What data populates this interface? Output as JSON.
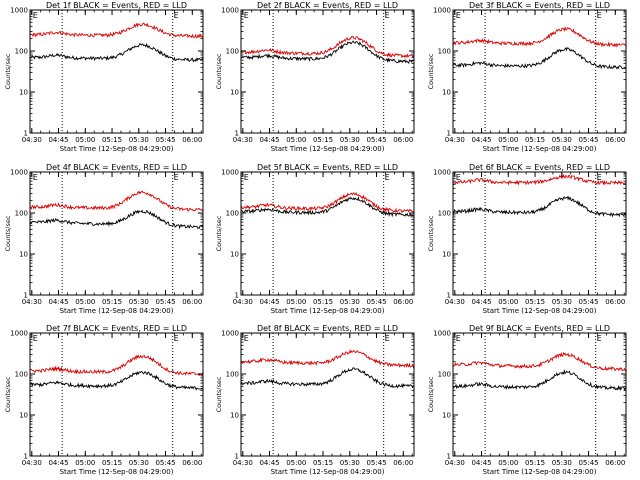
{
  "chart_data": [
    {
      "type": "line",
      "title": "Det 1f BLACK = Events, RED = LLD",
      "xlabel": "Start Time (12-Sep-08 04:29:00)",
      "ylabel": "Counts/sec",
      "x_ticks": [
        "04:30",
        "04:45",
        "05:00",
        "05:15",
        "05:30",
        "05:45",
        "06:00"
      ],
      "y_ticks": [
        "1",
        "10",
        "100",
        "1000"
      ],
      "xlim": [
        "04:29",
        "06:06"
      ],
      "ylim": [
        1,
        1000
      ],
      "y_scale": "log",
      "markers": [
        {
          "label": "E",
          "time": "04:30"
        },
        {
          "label": "E",
          "time": "05:49"
        }
      ],
      "vlines": [
        "04:47",
        "05:49"
      ],
      "series": [
        {
          "color": "#000000",
          "base": 70,
          "peak": 140,
          "end": 60
        },
        {
          "color": "#dd0000",
          "base": 250,
          "peak": 450,
          "end": 230
        }
      ]
    },
    {
      "type": "line",
      "title": "Det 2f BLACK = Events, RED = LLD",
      "xlabel": "Start Time (12-Sep-08 04:29:00)",
      "ylabel": "Counts/sec",
      "x_ticks": [
        "04:30",
        "04:45",
        "05:00",
        "05:15",
        "05:30",
        "05:45",
        "06:00"
      ],
      "y_ticks": [
        "1",
        "10",
        "100",
        "1000"
      ],
      "xlim": [
        "04:29",
        "06:06"
      ],
      "ylim": [
        1,
        1000
      ],
      "y_scale": "log",
      "markers": [
        {
          "label": "E",
          "time": "04:30"
        },
        {
          "label": "E",
          "time": "05:49"
        }
      ],
      "vlines": [
        "04:47",
        "05:49"
      ],
      "series": [
        {
          "color": "#000000",
          "base": 70,
          "peak": 160,
          "end": 55
        },
        {
          "color": "#dd0000",
          "base": 95,
          "peak": 210,
          "end": 75
        }
      ]
    },
    {
      "type": "line",
      "title": "Det 3f BLACK = Events, RED = LLD",
      "xlabel": "Start Time (12-Sep-08 04:29:00)",
      "ylabel": "Counts/sec",
      "x_ticks": [
        "04:30",
        "04:45",
        "05:00",
        "05:15",
        "05:30",
        "05:45",
        "06:00"
      ],
      "y_ticks": [
        "1",
        "10",
        "100",
        "1000"
      ],
      "xlim": [
        "04:29",
        "06:06"
      ],
      "ylim": [
        1,
        1000
      ],
      "y_scale": "log",
      "markers": [
        {
          "label": "E",
          "time": "04:30"
        },
        {
          "label": "E",
          "time": "05:49"
        }
      ],
      "vlines": [
        "04:47",
        "05:49"
      ],
      "series": [
        {
          "color": "#000000",
          "base": 45,
          "peak": 110,
          "end": 40
        },
        {
          "color": "#dd0000",
          "base": 160,
          "peak": 340,
          "end": 140
        }
      ]
    },
    {
      "type": "line",
      "title": "Det 4f BLACK = Events, RED = LLD",
      "xlabel": "Start Time (12-Sep-08 04:29:00)",
      "ylabel": "Counts/sec",
      "x_ticks": [
        "04:30",
        "04:45",
        "05:00",
        "05:15",
        "05:30",
        "05:45",
        "06:00"
      ],
      "y_ticks": [
        "1",
        "10",
        "100",
        "1000"
      ],
      "xlim": [
        "04:29",
        "06:06"
      ],
      "ylim": [
        1,
        1000
      ],
      "y_scale": "log",
      "markers": [
        {
          "label": "E",
          "time": "04:30"
        },
        {
          "label": "E",
          "time": "05:49"
        }
      ],
      "vlines": [
        "04:47",
        "05:49"
      ],
      "series": [
        {
          "color": "#000000",
          "base": 60,
          "peak": 110,
          "end": 45
        },
        {
          "color": "#dd0000",
          "base": 140,
          "peak": 320,
          "end": 120
        }
      ]
    },
    {
      "type": "line",
      "title": "Det 5f BLACK = Events, RED = LLD",
      "xlabel": "Start Time (12-Sep-08 04:29:00)",
      "ylabel": "Counts/sec",
      "x_ticks": [
        "04:30",
        "04:45",
        "05:00",
        "05:15",
        "05:30",
        "05:45",
        "06:00"
      ],
      "y_ticks": [
        "1",
        "10",
        "100",
        "1000"
      ],
      "xlim": [
        "04:29",
        "06:06"
      ],
      "ylim": [
        1,
        1000
      ],
      "y_scale": "log",
      "markers": [
        {
          "label": "E",
          "time": "04:30"
        },
        {
          "label": "E",
          "time": "05:49"
        }
      ],
      "vlines": [
        "04:47",
        "05:49"
      ],
      "series": [
        {
          "color": "#000000",
          "base": 110,
          "peak": 230,
          "end": 90
        },
        {
          "color": "#dd0000",
          "base": 140,
          "peak": 290,
          "end": 110
        }
      ]
    },
    {
      "type": "line",
      "title": "Det 6f BLACK = Events, RED = LLD",
      "xlabel": "Start Time (12-Sep-08 04:29:00)",
      "ylabel": "Counts/sec",
      "x_ticks": [
        "04:30",
        "04:45",
        "05:00",
        "05:15",
        "05:30",
        "05:45",
        "06:00"
      ],
      "y_ticks": [
        "1",
        "10",
        "100",
        "1000"
      ],
      "xlim": [
        "04:29",
        "06:06"
      ],
      "ylim": [
        1,
        1000
      ],
      "y_scale": "log",
      "markers": [
        {
          "label": "E",
          "time": "04:30"
        },
        {
          "label": "E",
          "time": "05:49"
        }
      ],
      "vlines": [
        "04:47",
        "05:49"
      ],
      "series": [
        {
          "color": "#000000",
          "base": 110,
          "peak": 230,
          "end": 90
        },
        {
          "color": "#dd0000",
          "base": 560,
          "peak": 780,
          "end": 540
        }
      ]
    },
    {
      "type": "line",
      "title": "Det 7f BLACK = Events, RED = LLD",
      "xlabel": "Start Time (12-Sep-08 04:29:00)",
      "ylabel": "Counts/sec",
      "x_ticks": [
        "04:30",
        "04:45",
        "05:00",
        "05:15",
        "05:30",
        "05:45",
        "06:00"
      ],
      "y_ticks": [
        "1",
        "10",
        "100",
        "1000"
      ],
      "xlim": [
        "04:29",
        "06:06"
      ],
      "ylim": [
        1,
        1000
      ],
      "y_scale": "log",
      "markers": [
        {
          "label": "E",
          "time": "04:30"
        },
        {
          "label": "E",
          "time": "05:49"
        }
      ],
      "vlines": [
        "04:47",
        "05:49"
      ],
      "series": [
        {
          "color": "#000000",
          "base": 55,
          "peak": 110,
          "end": 45
        },
        {
          "color": "#dd0000",
          "base": 120,
          "peak": 270,
          "end": 100
        }
      ]
    },
    {
      "type": "line",
      "title": "Det 8f BLACK = Events, RED = LLD",
      "xlabel": "Start Time (12-Sep-08 04:29:00)",
      "ylabel": "Counts/sec",
      "x_ticks": [
        "04:30",
        "04:45",
        "05:00",
        "05:15",
        "05:30",
        "05:45",
        "06:00"
      ],
      "y_ticks": [
        "1",
        "10",
        "100",
        "1000"
      ],
      "xlim": [
        "04:29",
        "06:06"
      ],
      "ylim": [
        1,
        1000
      ],
      "y_scale": "log",
      "markers": [
        {
          "label": "E",
          "time": "04:30"
        },
        {
          "label": "E",
          "time": "05:49"
        }
      ],
      "vlines": [
        "04:47",
        "05:49"
      ],
      "series": [
        {
          "color": "#000000",
          "base": 60,
          "peak": 130,
          "end": 50
        },
        {
          "color": "#dd0000",
          "base": 200,
          "peak": 350,
          "end": 160
        }
      ]
    },
    {
      "type": "line",
      "title": "Det 9f BLACK = Events, RED = LLD",
      "xlabel": "Start Time (12-Sep-08 04:29:00)",
      "ylabel": "Counts/sec",
      "x_ticks": [
        "04:30",
        "04:45",
        "05:00",
        "05:15",
        "05:30",
        "05:45",
        "06:00"
      ],
      "y_ticks": [
        "1",
        "10",
        "100",
        "1000"
      ],
      "xlim": [
        "04:29",
        "06:06"
      ],
      "ylim": [
        1,
        1000
      ],
      "y_scale": "log",
      "markers": [
        {
          "label": "E",
          "time": "04:30"
        },
        {
          "label": "E",
          "time": "05:49"
        }
      ],
      "vlines": [
        "04:47",
        "05:49"
      ],
      "series": [
        {
          "color": "#000000",
          "base": 50,
          "peak": 110,
          "end": 45
        },
        {
          "color": "#dd0000",
          "base": 170,
          "peak": 300,
          "end": 130
        }
      ]
    }
  ]
}
